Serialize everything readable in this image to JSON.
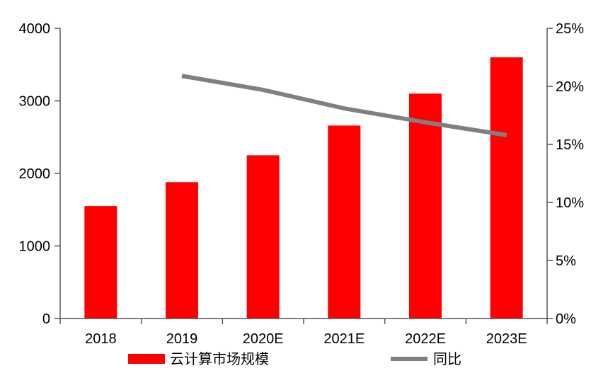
{
  "chart_data": {
    "type": "bar",
    "categories": [
      "2018",
      "2019",
      "2020E",
      "2021E",
      "2022E",
      "2023E"
    ],
    "series": [
      {
        "name": "云计算市场规模",
        "type": "bar",
        "axis": "left",
        "color": "#ff0000",
        "values": [
          1550,
          1880,
          2250,
          2660,
          3100,
          3600
        ]
      },
      {
        "name": "同比",
        "type": "line",
        "axis": "right",
        "color": "#808080",
        "values": [
          null,
          0.209,
          0.197,
          0.181,
          0.169,
          0.158
        ]
      }
    ],
    "ylim_left": [
      0,
      4000
    ],
    "yticks_left": [
      "0",
      "1000",
      "2000",
      "3000",
      "4000"
    ],
    "ylim_right": [
      0,
      0.25
    ],
    "yticks_right": [
      "0%",
      "5%",
      "10%",
      "15%",
      "20%",
      "25%"
    ],
    "grid": false,
    "legend_position": "bottom"
  }
}
